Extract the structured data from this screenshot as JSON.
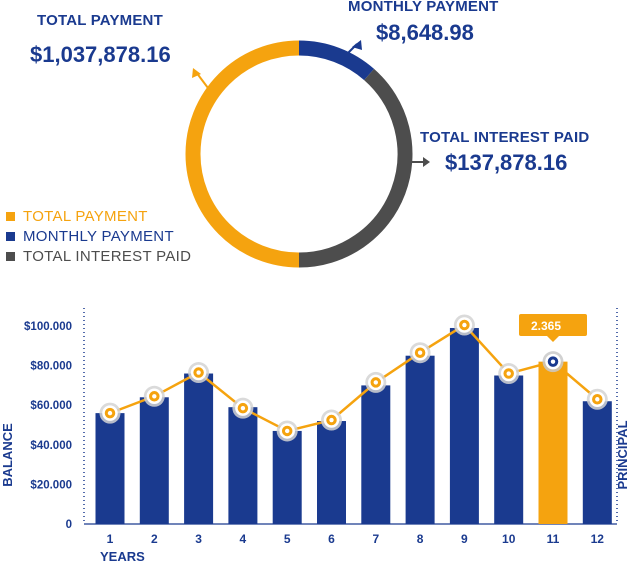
{
  "summary": {
    "total_payment_label": "TOTAL PAYMENT",
    "total_payment_value": "$1,037,878.16",
    "monthly_payment_label": "MONTHLY PAYMENT",
    "monthly_payment_value": "$8,648.98",
    "total_interest_label": "TOTAL INTEREST PAID",
    "total_interest_value": "$137,878.16"
  },
  "donut": {
    "segments": [
      {
        "name": "MONTHLY PAYMENT",
        "fraction": 0.115,
        "color": "#1a3a8f"
      },
      {
        "name": "TOTAL INTEREST PAID",
        "fraction": 0.385,
        "color": "#4d4d4d"
      },
      {
        "name": "TOTAL PAYMENT",
        "fraction": 0.5,
        "color": "#f5a30f"
      }
    ]
  },
  "legend": [
    {
      "label": "TOTAL PAYMENT",
      "color": "#f5a30f",
      "text_color": "#f5a30f"
    },
    {
      "label": "MONTHLY PAYMENT",
      "color": "#1a3a8f",
      "text_color": "#1a3a8f"
    },
    {
      "label": "TOTAL INTEREST PAID",
      "color": "#4d4d4d",
      "text_color": "#4d4d4d"
    }
  ],
  "chart_data": {
    "type": "bar",
    "xlabel": "YEARS",
    "ylabel": "BALANCE",
    "right_label": "PRINCIPAL",
    "ylim": [
      0,
      100000
    ],
    "y_ticks": [
      "0",
      "$20.000",
      "$40.000",
      "$60.000",
      "$80.000",
      "$100.000"
    ],
    "y_tick_values": [
      0,
      20000,
      40000,
      60000,
      80000,
      100000
    ],
    "categories": [
      "1",
      "2",
      "3",
      "4",
      "5",
      "6",
      "7",
      "8",
      "9",
      "10",
      "11",
      "12"
    ],
    "bars": [
      56000,
      64000,
      76000,
      59000,
      47000,
      52000,
      70000,
      85000,
      99000,
      75000,
      82000,
      62000
    ],
    "line": [
      56000,
      64500,
      76500,
      58500,
      47000,
      52500,
      71500,
      86500,
      100500,
      76000,
      82000,
      63000
    ],
    "highlight_index": 10,
    "tooltip": "2.365",
    "colors": {
      "bar": "#1a3a8f",
      "highlight": "#f5a30f",
      "line": "#f5a30f",
      "axis": "#1a3a8f"
    }
  }
}
